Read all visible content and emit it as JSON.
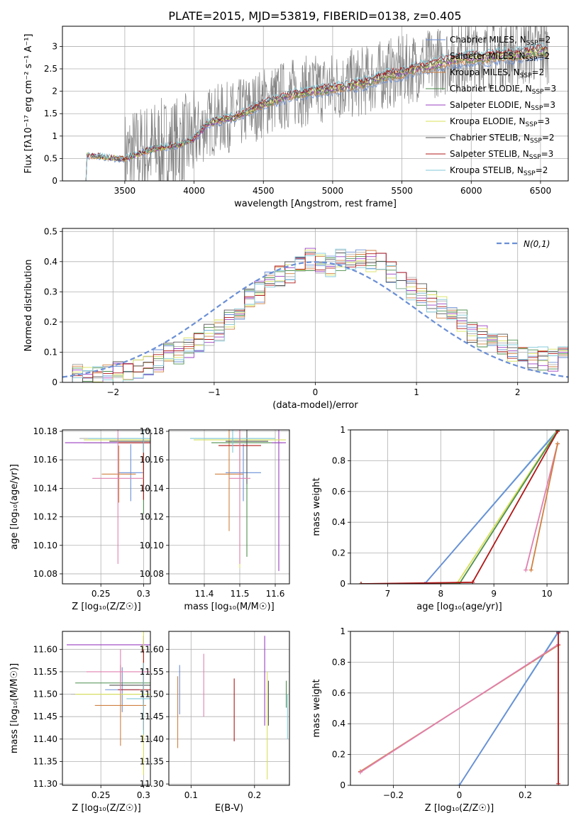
{
  "figure": {
    "title": "PLATE=2015, MJD=53819, FIBERID=0138, z=0.405"
  },
  "series_legend": [
    {
      "name": "Chabrier MILES, N",
      "sub": "SSP",
      "suffix": "=2",
      "color": "#6a8fd6"
    },
    {
      "name": "Salpeter MILES, N",
      "sub": "SSP",
      "suffix": "=2",
      "color": "#b0b0b0"
    },
    {
      "name": "Kroupa MILES, N",
      "sub": "SSP",
      "suffix": "=2",
      "color": "#d08040"
    },
    {
      "name": "Chabrier ELODIE, N",
      "sub": "SSP",
      "suffix": "=3",
      "color": "#4f8f4f"
    },
    {
      "name": "Salpeter ELODIE, N",
      "sub": "SSP",
      "suffix": "=3",
      "color": "#9a3fc0"
    },
    {
      "name": "Kroupa ELODIE, N",
      "sub": "SSP",
      "suffix": "=3",
      "color": "#d8e05a"
    },
    {
      "name": "Chabrier STELIB, N",
      "sub": "SSP",
      "suffix": "=2",
      "color": "#555555"
    },
    {
      "name": "Salpeter STELIB, N",
      "sub": "SSP",
      "suffix": "=3",
      "color": "#b01818"
    },
    {
      "name": "Kroupa STELIB, N",
      "sub": "SSP",
      "suffix": "=2",
      "color": "#80c8d8"
    }
  ],
  "chart_data": [
    {
      "type": "line",
      "xlabel": "wavelength [Angstrom, rest frame]",
      "ylabel": "Flux [fλ10⁻¹⁷ erg cm⁻² s⁻¹ A⁻¹]",
      "xlim": [
        3050,
        6700
      ],
      "ylim": [
        0,
        3.45
      ],
      "xticks": [
        3500,
        4000,
        4500,
        5000,
        5500,
        6000,
        6500
      ],
      "yticks": [
        0.0,
        0.5,
        1.0,
        1.5,
        2.0,
        2.5,
        3.0
      ],
      "data_color": "#808080",
      "model_continuum": {
        "x": [
          3220,
          3300,
          3400,
          3500,
          3600,
          3700,
          3800,
          3900,
          4000,
          4100,
          4200,
          4300,
          4400,
          4500,
          4600,
          4700,
          4800,
          4900,
          5000,
          5100,
          5200,
          5300,
          5400,
          5500,
          5600,
          5700,
          5800,
          5900,
          6000,
          6100,
          6200,
          6300,
          6400,
          6500,
          6550
        ],
        "y": [
          0.58,
          0.56,
          0.52,
          0.5,
          0.62,
          0.72,
          0.78,
          0.82,
          0.95,
          1.3,
          1.4,
          1.45,
          1.6,
          1.75,
          1.85,
          1.95,
          2.0,
          2.05,
          2.1,
          2.15,
          2.2,
          2.3,
          2.4,
          2.45,
          2.55,
          2.6,
          2.7,
          2.75,
          2.8,
          2.8,
          2.85,
          2.85,
          2.9,
          2.95,
          2.95
        ]
      },
      "legend_position": "upper right"
    },
    {
      "type": "histogram",
      "xlabel": "(data-model)/error",
      "ylabel": "Normed distribution",
      "xlim": [
        -2.5,
        2.5
      ],
      "ylim": [
        0,
        0.51
      ],
      "xticks": [
        -2,
        -1,
        0,
        1,
        2
      ],
      "yticks": [
        0.0,
        0.1,
        0.2,
        0.3,
        0.4,
        0.5
      ],
      "reference_curve": {
        "label": "N(0,1)",
        "mu": 0,
        "sigma": 1,
        "color": "#6a8fd6"
      },
      "bin_edges": [
        -2.5,
        -2.4,
        -2.3,
        -2.2,
        -2.1,
        -2.0,
        -1.9,
        -1.8,
        -1.7,
        -1.6,
        -1.5,
        -1.4,
        -1.3,
        -1.2,
        -1.1,
        -1.0,
        -0.9,
        -0.8,
        -0.7,
        -0.6,
        -0.5,
        -0.4,
        -0.3,
        -0.2,
        -0.1,
        0.0,
        0.1,
        0.2,
        0.3,
        0.4,
        0.5,
        0.6,
        0.7,
        0.8,
        0.9,
        1.0,
        1.1,
        1.2,
        1.3,
        1.4,
        1.5,
        1.6,
        1.7,
        1.8,
        1.9,
        2.0,
        2.1,
        2.2,
        2.3,
        2.4,
        2.5
      ],
      "values": [
        0.04,
        0.02,
        0.02,
        0.02,
        0.02,
        0.03,
        0.04,
        0.05,
        0.06,
        0.07,
        0.09,
        0.1,
        0.12,
        0.14,
        0.16,
        0.17,
        0.2,
        0.23,
        0.27,
        0.3,
        0.33,
        0.35,
        0.36,
        0.38,
        0.41,
        0.4,
        0.39,
        0.41,
        0.4,
        0.42,
        0.4,
        0.39,
        0.36,
        0.34,
        0.31,
        0.29,
        0.27,
        0.25,
        0.23,
        0.2,
        0.17,
        0.15,
        0.13,
        0.12,
        0.11,
        0.09,
        0.08,
        0.08,
        0.07,
        0.08
      ]
    },
    {
      "type": "scatter",
      "xlabel": "Z [log₁₀(Z/Z☉)]",
      "ylabel": "age  [log₁₀(age/yr)]",
      "xlim": [
        0.205,
        0.308
      ],
      "ylim": [
        10.073,
        10.181
      ],
      "xticks": [
        0.25,
        0.3
      ],
      "yticks": [
        10.08,
        10.1,
        10.12,
        10.14,
        10.16,
        10.18
      ],
      "points": [
        {
          "x": 0.285,
          "y": 10.151,
          "xerr": 0.015,
          "yerr": 0.02,
          "color": "#6a8fd6"
        },
        {
          "x": 0.3,
          "y": 10.175,
          "xerr": 0.075,
          "yerr": 0.002,
          "color": "#b0b0b0"
        },
        {
          "x": 0.271,
          "y": 10.15,
          "xerr": 0.02,
          "yerr": 0.02,
          "color": "#d08040"
        },
        {
          "x": 0.3,
          "y": 10.172,
          "xerr": 0.07,
          "yerr": 0.05,
          "color": "#4f8f4f"
        },
        {
          "x": 0.3,
          "y": 10.172,
          "xerr": 0.092,
          "yerr": 0.004,
          "color": "#9a3fc0"
        },
        {
          "x": 0.3,
          "y": 10.174,
          "xerr": 0.07,
          "yerr": 0.03,
          "color": "#d8e05a"
        },
        {
          "x": 0.3,
          "y": 10.173,
          "xerr": 0.04,
          "yerr": 0.02,
          "color": "#555555"
        },
        {
          "x": 0.3,
          "y": 10.172,
          "xerr": 0.03,
          "yerr": 0.04,
          "color": "#b01818"
        },
        {
          "x": 0.3,
          "y": 10.175,
          "xerr": 0.065,
          "yerr": 0.01,
          "color": "#80c8d8"
        },
        {
          "x": 0.27,
          "y": 10.147,
          "xerr": 0.03,
          "yerr": 0.06,
          "color": "#e080b0"
        }
      ]
    },
    {
      "type": "scatter",
      "xlabel": "mass [log₁₀(M/M☉)]",
      "ylabel": "",
      "xlim": [
        11.3,
        11.64
      ],
      "ylim": [
        10.073,
        10.181
      ],
      "xticks": [
        11.4,
        11.5,
        11.6
      ],
      "yticks": [
        10.08,
        10.1,
        10.12,
        10.14,
        10.16,
        10.18
      ],
      "points": [
        {
          "x": 11.51,
          "y": 10.151,
          "xerr": 0.05,
          "yerr": 0.02,
          "color": "#6a8fd6"
        },
        {
          "x": 11.5,
          "y": 10.175,
          "xerr": 0.1,
          "yerr": 0.002,
          "color": "#b0b0b0"
        },
        {
          "x": 11.47,
          "y": 10.15,
          "xerr": 0.04,
          "yerr": 0.04,
          "color": "#d08040"
        },
        {
          "x": 11.52,
          "y": 10.172,
          "xerr": 0.1,
          "yerr": 0.08,
          "color": "#4f8f4f"
        },
        {
          "x": 11.61,
          "y": 10.172,
          "xerr": 0.02,
          "yerr": 0.09,
          "color": "#9a3fc0"
        },
        {
          "x": 11.5,
          "y": 10.174,
          "xerr": 0.13,
          "yerr": 0.09,
          "color": "#d8e05a"
        },
        {
          "x": 11.52,
          "y": 10.173,
          "xerr": 0.06,
          "yerr": 0.03,
          "color": "#555555"
        },
        {
          "x": 11.5,
          "y": 10.17,
          "xerr": 0.06,
          "yerr": 0.02,
          "color": "#b01818"
        },
        {
          "x": 11.48,
          "y": 10.175,
          "xerr": 0.12,
          "yerr": 0.01,
          "color": "#80c8d8"
        },
        {
          "x": 11.5,
          "y": 10.147,
          "xerr": 0.03,
          "yerr": 0.06,
          "color": "#e080b0"
        }
      ]
    },
    {
      "type": "line",
      "xlabel": "age  [log₁₀(age/yr)]",
      "ylabel": "mass weight",
      "xlim": [
        6.3,
        10.4
      ],
      "ylim": [
        0,
        1.0
      ],
      "xticks": [
        7,
        8,
        9,
        10
      ],
      "yticks": [
        0.0,
        0.2,
        0.4,
        0.6,
        0.8,
        1.0
      ],
      "series": [
        {
          "x": [
            6.5,
            7.7,
            10.2
          ],
          "y": [
            0.0,
            0.0,
            1.0
          ],
          "color": "#80c8d8"
        },
        {
          "x": [
            6.5,
            7.7,
            10.2
          ],
          "y": [
            0.0,
            0.0,
            0.995
          ],
          "color": "#6a8fd6"
        },
        {
          "x": [
            6.5,
            8.3,
            10.2
          ],
          "y": [
            0.0,
            0.0,
            1.0
          ],
          "color": "#d8e05a"
        },
        {
          "x": [
            6.5,
            8.35,
            10.2
          ],
          "y": [
            0.0,
            0.0,
            0.995
          ],
          "color": "#4f8f4f"
        },
        {
          "x": [
            6.5,
            8.6,
            10.2
          ],
          "y": [
            0.0,
            0.01,
            0.99
          ],
          "color": "#b01818"
        },
        {
          "x": [
            9.6,
            10.2
          ],
          "y": [
            0.09,
            0.91
          ],
          "color": "#e080b0"
        },
        {
          "x": [
            9.7,
            10.2
          ],
          "y": [
            0.09,
            0.91
          ],
          "color": "#d08040"
        }
      ]
    },
    {
      "type": "scatter",
      "xlabel": "Z [log₁₀(Z/Z☉)]",
      "ylabel": "mass [log₁₀(M/M☉)]",
      "xlim": [
        0.205,
        0.308
      ],
      "ylim": [
        11.297,
        11.64
      ],
      "xticks": [
        0.25,
        0.3
      ],
      "yticks": [
        11.3,
        11.35,
        11.4,
        11.45,
        11.5,
        11.55,
        11.6
      ],
      "points": [
        {
          "x": 0.275,
          "y": 11.51,
          "xerr": 0.02,
          "yerr": 0.05,
          "color": "#6a8fd6"
        },
        {
          "x": 0.3,
          "y": 11.5,
          "xerr": 0.085,
          "yerr": 0.01,
          "color": "#b0b0b0"
        },
        {
          "x": 0.273,
          "y": 11.475,
          "xerr": 0.03,
          "yerr": 0.09,
          "color": "#d08040"
        },
        {
          "x": 0.3,
          "y": 11.525,
          "xerr": 0.08,
          "yerr": 0.05,
          "color": "#4f8f4f"
        },
        {
          "x": 0.3,
          "y": 11.61,
          "xerr": 0.09,
          "yerr": 0.02,
          "color": "#9a3fc0"
        },
        {
          "x": 0.3,
          "y": 11.5,
          "xerr": 0.08,
          "yerr": 0.18,
          "color": "#d8e05a"
        },
        {
          "x": 0.3,
          "y": 11.52,
          "xerr": 0.04,
          "yerr": 0.04,
          "color": "#555555"
        },
        {
          "x": 0.3,
          "y": 11.51,
          "xerr": 0.03,
          "yerr": 0.09,
          "color": "#b01818"
        },
        {
          "x": 0.3,
          "y": 11.49,
          "xerr": 0.02,
          "yerr": 0.08,
          "color": "#80c8d8"
        },
        {
          "x": 0.273,
          "y": 11.55,
          "xerr": 0.04,
          "yerr": 0.05,
          "color": "#e080b0"
        }
      ]
    },
    {
      "type": "scatter",
      "xlabel": "E(B-V)",
      "ylabel": "",
      "xlim": [
        0.065,
        0.255
      ],
      "ylim": [
        11.297,
        11.64
      ],
      "xticks": [
        0.1,
        0.2
      ],
      "yticks": [
        11.3,
        11.35,
        11.4,
        11.45,
        11.5,
        11.55,
        11.6
      ],
      "points": [
        {
          "x": 0.082,
          "y": 11.51,
          "xerr": 0.0,
          "yerr": 0.055,
          "color": "#6a8fd6"
        },
        {
          "x": 0.079,
          "y": 11.46,
          "xerr": 0.0,
          "yerr": 0.08,
          "color": "#d08040"
        },
        {
          "x": 0.12,
          "y": 11.52,
          "xerr": 0.0,
          "yerr": 0.07,
          "color": "#e080b0"
        },
        {
          "x": 0.168,
          "y": 11.465,
          "xerr": 0.0,
          "yerr": 0.07,
          "color": "#b01818"
        },
        {
          "x": 0.216,
          "y": 11.53,
          "xerr": 0.0,
          "yerr": 0.1,
          "color": "#9a3fc0"
        },
        {
          "x": 0.22,
          "y": 11.43,
          "xerr": 0.0,
          "yerr": 0.12,
          "color": "#d8e05a"
        },
        {
          "x": 0.222,
          "y": 11.48,
          "xerr": 0.0,
          "yerr": 0.05,
          "color": "#555555"
        },
        {
          "x": 0.25,
          "y": 11.5,
          "xerr": 0.0,
          "yerr": 0.03,
          "color": "#4f8f4f"
        },
        {
          "x": 0.252,
          "y": 11.45,
          "xerr": 0.0,
          "yerr": 0.05,
          "color": "#80c8d8"
        }
      ]
    },
    {
      "type": "line",
      "xlabel": "Z [log₁₀(Z/Z☉)]",
      "ylabel": "mass weight",
      "xlim": [
        -0.33,
        0.33
      ],
      "ylim": [
        0,
        1.0
      ],
      "xticks": [
        -0.2,
        0.0,
        0.2
      ],
      "yticks": [
        0.0,
        0.2,
        0.4,
        0.6,
        0.8,
        1.0
      ],
      "series": [
        {
          "x": [
            0.0,
            0.3
          ],
          "y": [
            0.0,
            1.0
          ],
          "color": "#80c8d8"
        },
        {
          "x": [
            0.0,
            0.3
          ],
          "y": [
            0.0,
            0.995
          ],
          "color": "#6a8fd6"
        },
        {
          "x": [
            -0.3,
            0.3
          ],
          "y": [
            0.09,
            0.91
          ],
          "color": "#d08040"
        },
        {
          "x": [
            -0.3,
            0.3
          ],
          "y": [
            0.085,
            0.915
          ],
          "color": "#e080b0"
        },
        {
          "x": [
            0.3,
            0.3
          ],
          "y": [
            0.01,
            0.99
          ],
          "color": "#b01818"
        }
      ]
    }
  ]
}
